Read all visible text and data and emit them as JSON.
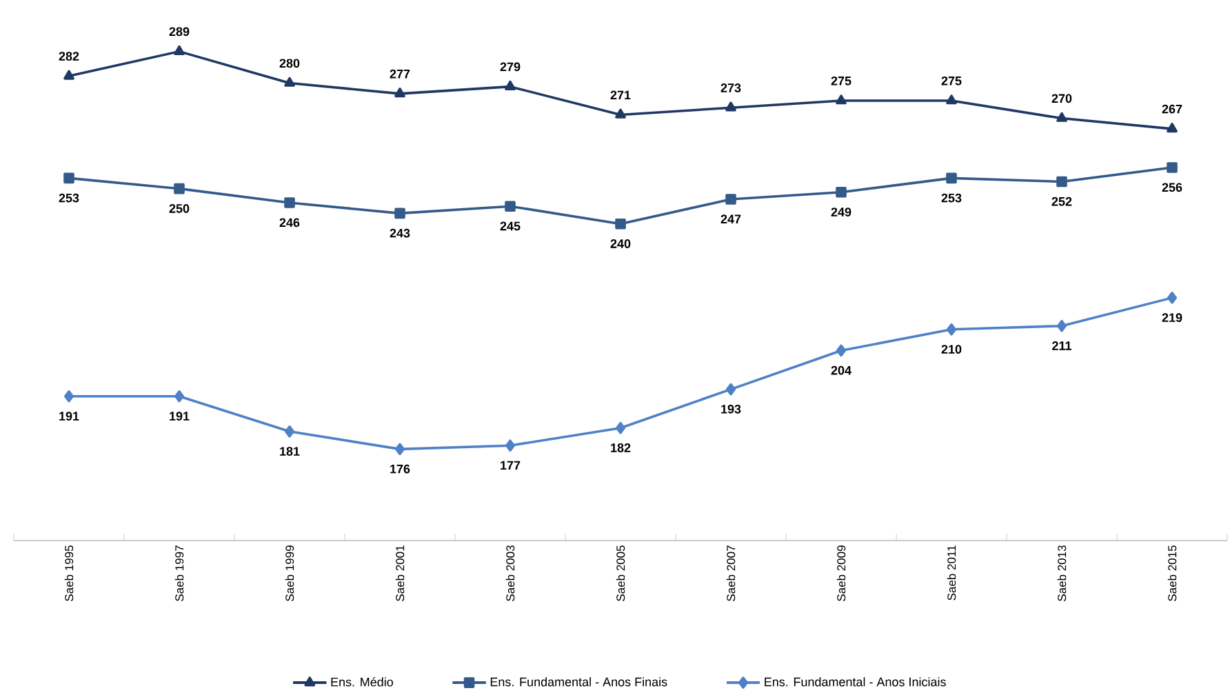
{
  "chart_data": {
    "type": "line",
    "categories": [
      "Saeb 1995",
      "Saeb 1997",
      "Saeb 1999",
      "Saeb 2001",
      "Saeb 2003",
      "Saeb 2005",
      "Saeb 2007",
      "Saeb 2009",
      "Saeb 2011",
      "Saeb 2013",
      "Saeb 2015"
    ],
    "series": [
      {
        "name": "Ens. Médio",
        "color": "#1f3864",
        "marker": "triangle",
        "values": [
          282,
          289,
          280,
          277,
          279,
          271,
          273,
          275,
          275,
          270,
          267
        ]
      },
      {
        "name": "Ens. Fundamental - Anos Finais",
        "color": "#345a8a",
        "marker": "square",
        "values": [
          253,
          250,
          246,
          243,
          245,
          240,
          247,
          249,
          253,
          252,
          256
        ]
      },
      {
        "name": "Ens. Fundamental - Anos Iniciais",
        "color": "#4f81c7",
        "marker": "diamond",
        "values": [
          191,
          191,
          181,
          176,
          177,
          182,
          193,
          204,
          210,
          211,
          219
        ]
      }
    ],
    "data_labels": true,
    "grid": false,
    "legend": "bottom"
  }
}
